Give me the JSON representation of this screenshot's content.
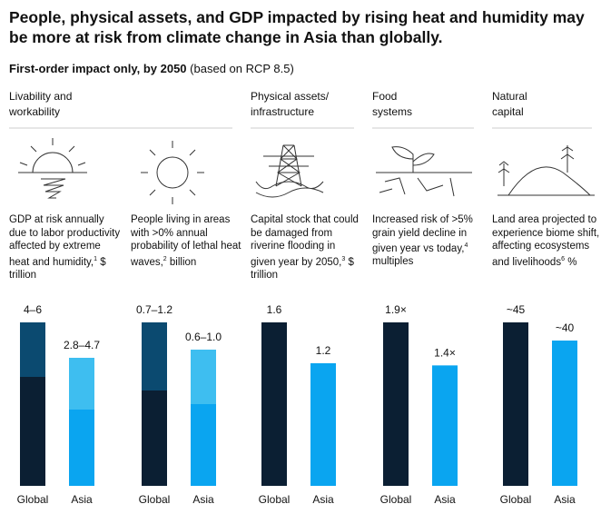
{
  "header": {
    "title": "People, physical assets, and GDP impacted by rising heat and humidity may be more at risk from climate change in Asia than globally.",
    "subtitle_bold": "First-order impact only, by 2050",
    "subtitle_rest": "(based on RCP 8.5)"
  },
  "sections": [
    "Livability and workability",
    "Physical assets/ infrastructure",
    "Food systems",
    "Natural capital"
  ],
  "chart_data": [
    {
      "type": "range",
      "description": "GDP at risk annually due to labor productivity affected by extreme heat and humidity,",
      "note": "1",
      "unit": "$ trillion",
      "categories": [
        "Global",
        "Asia"
      ],
      "values_low": [
        4,
        2.8
      ],
      "values_high": [
        6,
        4.7
      ],
      "value_labels": [
        "4–6",
        "2.8–4.7"
      ],
      "colors": [
        "#0b1f33",
        "#0aa5f0"
      ],
      "range_colors": [
        "#0b4a70",
        "#3ebef0"
      ],
      "ylim": [
        0,
        6
      ]
    },
    {
      "type": "range",
      "description": "People living in areas with >0% annual probability of lethal heat waves,",
      "note": "2",
      "unit": "billion",
      "categories": [
        "Global",
        "Asia"
      ],
      "values_low": [
        0.7,
        0.6
      ],
      "values_high": [
        1.2,
        1.0
      ],
      "value_labels": [
        "0.7–1.2",
        "0.6–1.0"
      ],
      "colors": [
        "#0b1f33",
        "#0aa5f0"
      ],
      "range_colors": [
        "#0b4a70",
        "#3ebef0"
      ],
      "ylim": [
        0,
        1.2
      ]
    },
    {
      "type": "bar",
      "description": "Capital stock that could be damaged from riverine flooding in given year by 2050,",
      "note": "3",
      "unit": "$ trillion",
      "categories": [
        "Global",
        "Asia"
      ],
      "values": [
        1.6,
        1.2
      ],
      "colors": [
        "#0b1f33",
        "#0aa5f0"
      ],
      "ylim": [
        0,
        1.6
      ]
    },
    {
      "type": "bar",
      "description": "Increased risk of >5% grain yield decline in given year vs today,",
      "note": "4",
      "unit": "multiples",
      "categories": [
        "Global",
        "Asia"
      ],
      "values": [
        1.9,
        1.4
      ],
      "value_labels": [
        "1.9×",
        "1.4×"
      ],
      "colors": [
        "#0b1f33",
        "#0aa5f0"
      ],
      "ylim": [
        0,
        1.9
      ]
    },
    {
      "type": "bar",
      "description": "Land area projected to experience biome shift, affecting ecosystems and livelihoods",
      "note": "6",
      "unit": "%",
      "categories": [
        "Global",
        "Asia"
      ],
      "values": [
        45,
        40
      ],
      "value_labels": [
        "~45",
        "~40"
      ],
      "colors": [
        "#0b1f33",
        "#0aa5f0"
      ],
      "ylim": [
        0,
        45
      ]
    }
  ]
}
